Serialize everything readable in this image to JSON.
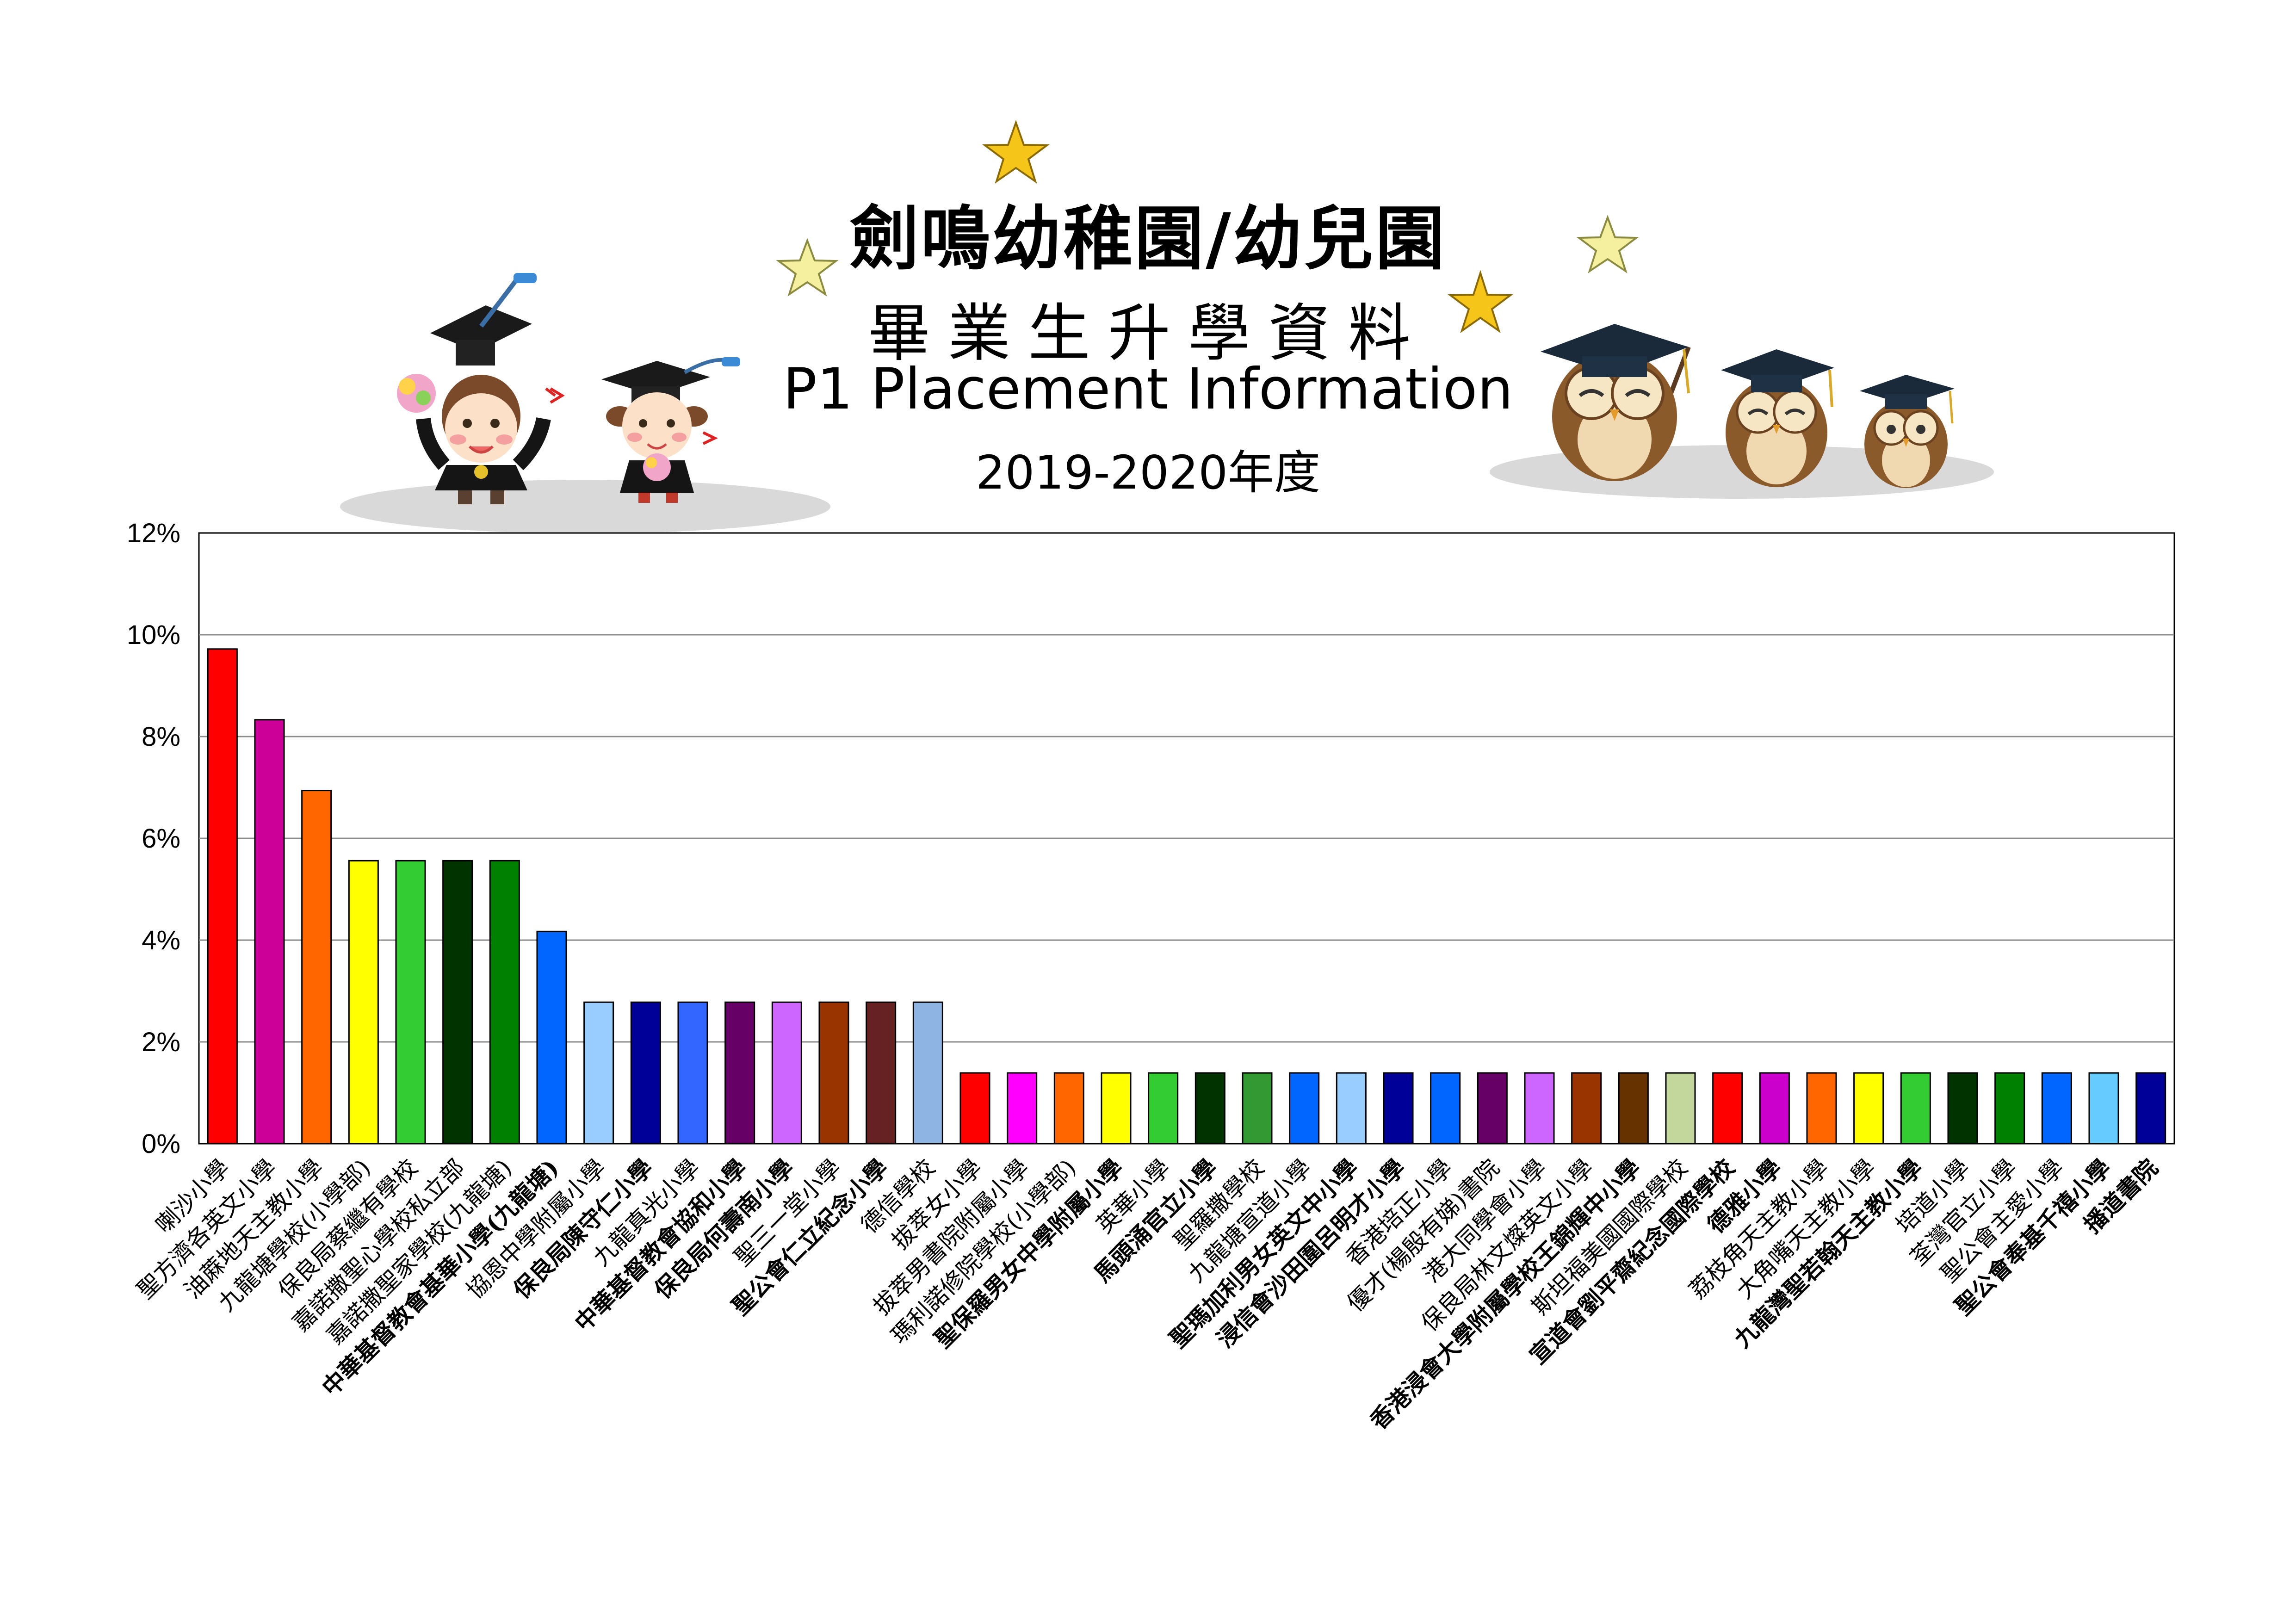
{
  "header": {
    "title": "劍鳴幼稚園/幼兒園",
    "subtitle": "畢業生升學資料",
    "english_title": "P1 Placement Information",
    "year": "2019-2020年度"
  },
  "chart_data": {
    "type": "bar",
    "title": "",
    "xlabel": "",
    "ylabel": "",
    "ylim": [
      0,
      0.12
    ],
    "y_ticks": [
      "0%",
      "2%",
      "4%",
      "6%",
      "8%",
      "10%",
      "12%"
    ],
    "grid": true,
    "legend": "none",
    "categories": [
      "喇沙小學",
      "聖方濟各英文小學",
      "油蔴地天主教小學",
      "九龍塘學校(小學部)",
      "保良局蔡繼有學校",
      "嘉諾撒聖心學校私立部",
      "嘉諾撒聖家學校(九龍塘)",
      "中華基督教會基華小學(九龍塘)",
      "協恩中學附屬小學",
      "保良局陳守仁小學",
      "九龍真光小學",
      "中華基督教會協和小學",
      "保良局何壽南小學",
      "聖三一堂小學",
      "聖公會仁立紀念小學",
      "德信學校",
      "拔萃女小學",
      "拔萃男書院附屬小學",
      "瑪利諾修院學校(小學部)",
      "聖保羅男女中學附屬小學",
      "英華小學",
      "馬頭涌官立小學",
      "聖羅撒學校",
      "九龍塘宣道小學",
      "聖瑪加利男女英文中小學",
      "浸信會沙田圍呂明才小學",
      "香港培正小學",
      "優才(楊殷有娣)書院",
      "港大同學會小學",
      "保良局林文燦英文小學",
      "香港浸會大學附屬學校王錦輝中小學",
      "斯坦福美國國際學校",
      "宣道會劉平齋紀念國際學校",
      "德雅小學",
      "荔枝角天主教小學",
      "大角嘴天主教小學",
      "九龍灣聖若翰天主教小學",
      "培道小學",
      "荃灣官立小學",
      "聖公會主愛小學",
      "聖公會奉基千禧小學",
      "播道書院"
    ],
    "values": [
      0.0972,
      0.0833,
      0.0694,
      0.0556,
      0.0556,
      0.0556,
      0.0556,
      0.0417,
      0.0278,
      0.0278,
      0.0278,
      0.0278,
      0.0278,
      0.0278,
      0.0278,
      0.0278,
      0.0139,
      0.0139,
      0.0139,
      0.0139,
      0.0139,
      0.0139,
      0.0139,
      0.0139,
      0.0139,
      0.0139,
      0.0139,
      0.0139,
      0.0139,
      0.0139,
      0.0139,
      0.0139,
      0.0139,
      0.0139,
      0.0139,
      0.0139,
      0.0139,
      0.0139,
      0.0139,
      0.0139,
      0.0139,
      0.0139
    ],
    "colors": [
      "#ff0000",
      "#cc0099",
      "#ff6600",
      "#ffff00",
      "#33cc33",
      "#003300",
      "#008000",
      "#0066ff",
      "#99ccff",
      "#000099",
      "#3366ff",
      "#660066",
      "#cc66ff",
      "#993300",
      "#662222",
      "#8eb4e3",
      "#ff0000",
      "#ff00ff",
      "#ff6600",
      "#ffff00",
      "#33cc33",
      "#003300",
      "#339933",
      "#0066ff",
      "#99ccff",
      "#000099",
      "#0066ff",
      "#660066",
      "#cc66ff",
      "#993300",
      "#663300",
      "#c3d69b",
      "#ff0000",
      "#cc00cc",
      "#ff6600",
      "#ffff00",
      "#33cc33",
      "#003300",
      "#008000",
      "#0066ff",
      "#66ccff",
      "#000099"
    ],
    "bold_labels": [
      7,
      9,
      11,
      12,
      14,
      19,
      21,
      24,
      25,
      30,
      32,
      33,
      36,
      40,
      41
    ]
  }
}
